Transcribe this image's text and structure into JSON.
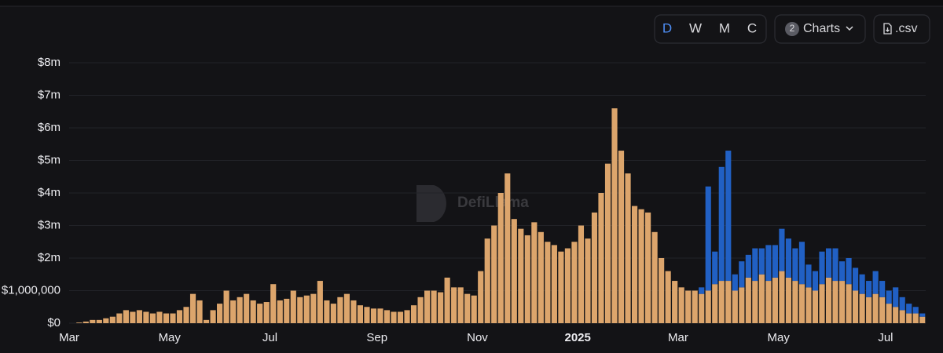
{
  "toolbar": {
    "periods": [
      "D",
      "W",
      "M",
      "C"
    ],
    "charts_count": "2",
    "charts_label": "Charts",
    "csv_label": ".csv"
  },
  "watermark": "DefiLlama",
  "chart_data": {
    "type": "stacked_bar",
    "categories": [
      "Mar",
      null,
      null,
      null,
      null,
      null,
      null,
      null,
      null,
      null,
      null,
      null,
      null,
      null,
      null,
      "May",
      null,
      null,
      null,
      null,
      null,
      null,
      null,
      null,
      null,
      null,
      null,
      null,
      null,
      null,
      "Jul",
      null,
      null,
      null,
      null,
      null,
      null,
      null,
      null,
      null,
      null,
      null,
      null,
      null,
      null,
      null,
      "Sep",
      null,
      null,
      null,
      null,
      null,
      null,
      null,
      null,
      null,
      null,
      null,
      null,
      null,
      null,
      "Nov",
      null,
      null,
      null,
      null,
      null,
      null,
      null,
      null,
      null,
      null,
      null,
      null,
      null,
      null,
      "2025",
      null,
      null,
      null,
      null,
      null,
      null,
      null,
      null,
      null,
      null,
      null,
      null,
      null,
      null,
      "Mar",
      null,
      null,
      null,
      null,
      null,
      null,
      null,
      null,
      null,
      null,
      null,
      null,
      null,
      null,
      "May",
      null,
      null,
      null,
      null,
      null,
      null,
      null,
      null,
      null,
      null,
      null,
      null,
      null,
      null,
      null,
      "Jul",
      null,
      null,
      null,
      null,
      null
    ],
    "series": [
      {
        "color": "#dca56c",
        "values": [
          0,
          20000,
          50000,
          100000,
          100000,
          150000,
          200000,
          300000,
          400000,
          350000,
          400000,
          350000,
          300000,
          350000,
          300000,
          300000,
          400000,
          500000,
          900000,
          700000,
          100000,
          400000,
          600000,
          1000000,
          700000,
          800000,
          900000,
          700000,
          600000,
          650000,
          1200000,
          700000,
          750000,
          1000000,
          800000,
          850000,
          900000,
          1300000,
          700000,
          600000,
          800000,
          900000,
          700000,
          550000,
          500000,
          450000,
          450000,
          400000,
          350000,
          350000,
          400000,
          550000,
          800000,
          1000000,
          1000000,
          950000,
          1400000,
          1100000,
          1100000,
          900000,
          850000,
          1600000,
          2600000,
          3000000,
          4000000,
          4600000,
          3200000,
          2900000,
          2700000,
          3100000,
          2800000,
          2500000,
          2400000,
          2200000,
          2300000,
          2500000,
          3000000,
          2600000,
          3400000,
          4000000,
          4900000,
          6600000,
          5300000,
          4600000,
          3600000,
          3500000,
          3400000,
          2800000,
          2000000,
          1600000,
          1300000,
          1100000,
          1000000,
          1000000,
          900000,
          1000000,
          1200000,
          1300000,
          1300000,
          1000000,
          1100000,
          1400000,
          1300000,
          1500000,
          1300000,
          1400000,
          1600000,
          1400000,
          1300000,
          1200000,
          1100000,
          1000000,
          1200000,
          1400000,
          1300000,
          1300000,
          1200000,
          1000000,
          900000,
          800000,
          900000,
          800000,
          600000,
          500000,
          400000,
          300000,
          300000,
          200000
        ]
      },
      {
        "color": "#2160c4",
        "values": [
          0,
          0,
          0,
          0,
          0,
          0,
          0,
          0,
          0,
          0,
          0,
          0,
          0,
          0,
          0,
          0,
          0,
          0,
          0,
          0,
          0,
          0,
          0,
          0,
          0,
          0,
          0,
          0,
          0,
          0,
          0,
          0,
          0,
          0,
          0,
          0,
          0,
          0,
          0,
          0,
          0,
          0,
          0,
          0,
          0,
          0,
          0,
          0,
          0,
          0,
          0,
          0,
          0,
          0,
          0,
          0,
          0,
          0,
          0,
          0,
          0,
          0,
          0,
          0,
          0,
          0,
          0,
          0,
          0,
          0,
          0,
          0,
          0,
          0,
          0,
          0,
          0,
          0,
          0,
          0,
          0,
          0,
          0,
          0,
          0,
          0,
          0,
          0,
          0,
          0,
          0,
          0,
          0,
          0,
          200000,
          3200000,
          1000000,
          3500000,
          4000000,
          500000,
          800000,
          700000,
          1000000,
          800000,
          1100000,
          1000000,
          1300000,
          1200000,
          1000000,
          1300000,
          700000,
          600000,
          1000000,
          900000,
          1000000,
          600000,
          800000,
          700000,
          600000,
          500000,
          700000,
          500000,
          400000,
          600000,
          400000,
          300000,
          200000,
          100000
        ]
      }
    ],
    "ylim": [
      0,
      8000000
    ],
    "yticks": [
      {
        "value": 0,
        "label": "$0"
      },
      {
        "value": 1000000,
        "label": "$1,000,000"
      },
      {
        "value": 2000000,
        "label": "$2m"
      },
      {
        "value": 3000000,
        "label": "$3m"
      },
      {
        "value": 4000000,
        "label": "$4m"
      },
      {
        "value": 5000000,
        "label": "$5m"
      },
      {
        "value": 6000000,
        "label": "$6m"
      },
      {
        "value": 7000000,
        "label": "$7m"
      },
      {
        "value": 8000000,
        "label": "$8m"
      }
    ],
    "grid": true
  }
}
